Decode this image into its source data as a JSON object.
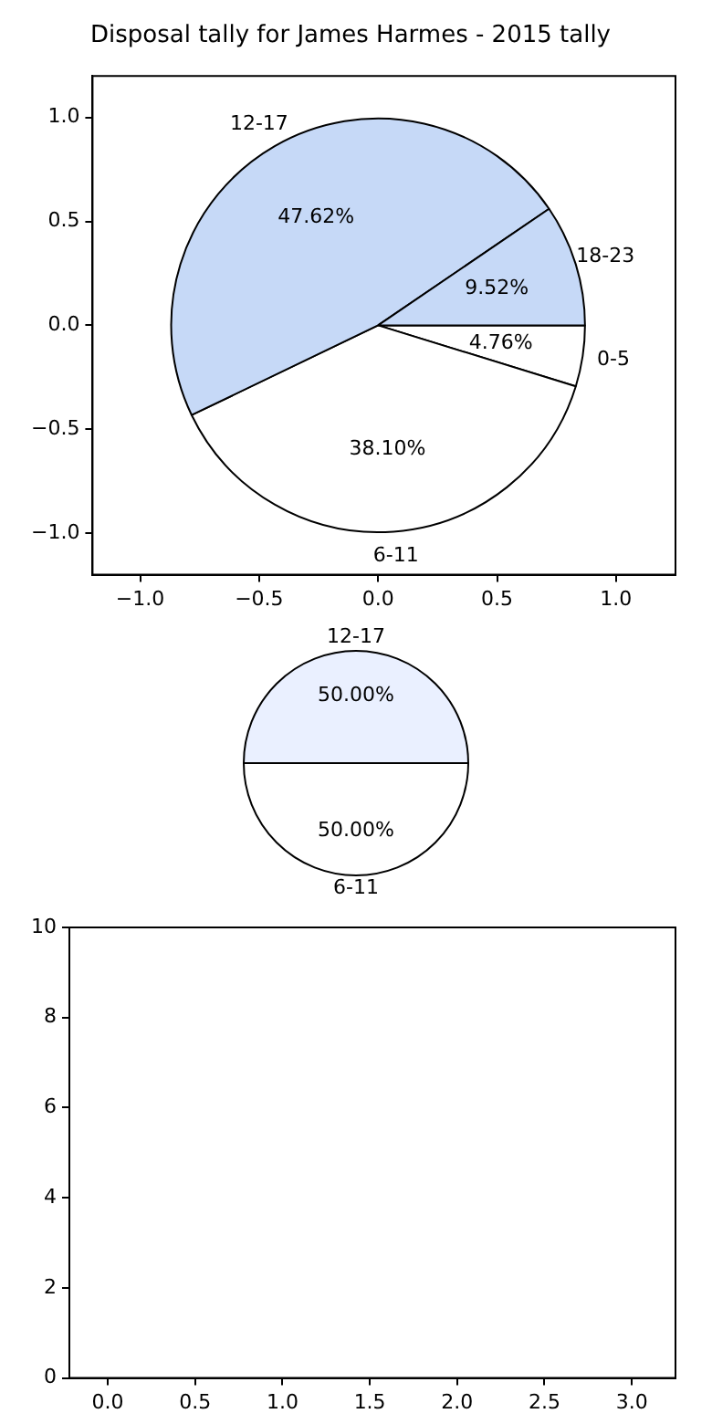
{
  "chart_data": [
    {
      "type": "scatter",
      "title": "Disposal tally for James Harmes - 2015 tally",
      "xlim": [
        -1.2,
        1.25
      ],
      "xticks": [
        {
          "value": -1,
          "label": "−1.0"
        },
        {
          "value": -0.5,
          "label": "−0.5"
        },
        {
          "value": 0,
          "label": "0.0"
        },
        {
          "value": 0.5,
          "label": "0.5"
        },
        {
          "value": 1,
          "label": "1.0"
        }
      ],
      "ylim": [
        -1.2,
        1.2
      ],
      "yticks": [
        {
          "value": -1,
          "label": "−1.0"
        },
        {
          "value": -0.5,
          "label": "−0.5"
        },
        {
          "value": 0,
          "label": "0.0"
        },
        {
          "value": 0.5,
          "label": "0.5"
        },
        {
          "value": 1,
          "label": "1.0"
        }
      ]
    },
    {
      "type": "pie",
      "categories": [
        "0-5",
        "6-11",
        "12-17",
        "18-23"
      ],
      "values": [
        4.76,
        38.1,
        47.62,
        9.52
      ],
      "colors": [
        "#ffffff",
        "#ffffff",
        "#c6d9f7",
        "#c6d9f7"
      ],
      "value_labels": [
        "4.76%",
        "38.10%",
        "47.62%",
        "9.52%"
      ]
    },
    {
      "type": "pie",
      "categories": [
        "6-11",
        "12-17"
      ],
      "values": [
        50,
        50
      ],
      "colors": [
        "#ffffff",
        "#eaf0ff"
      ],
      "value_labels": [
        "50.00%",
        "50.00%"
      ]
    },
    {
      "type": "scatter",
      "xlim": [
        -0.22,
        3.25
      ],
      "xticks": [
        {
          "value": 0,
          "label": "0.0"
        },
        {
          "value": 0.5,
          "label": "0.5"
        },
        {
          "value": 1,
          "label": "1.0"
        },
        {
          "value": 1.5,
          "label": "1.5"
        },
        {
          "value": 2,
          "label": "2.0"
        },
        {
          "value": 2.5,
          "label": "2.5"
        },
        {
          "value": 3,
          "label": "3.0"
        }
      ],
      "ylim": [
        0,
        10
      ],
      "yticks": [
        0,
        2,
        4,
        6,
        8,
        10
      ]
    }
  ]
}
